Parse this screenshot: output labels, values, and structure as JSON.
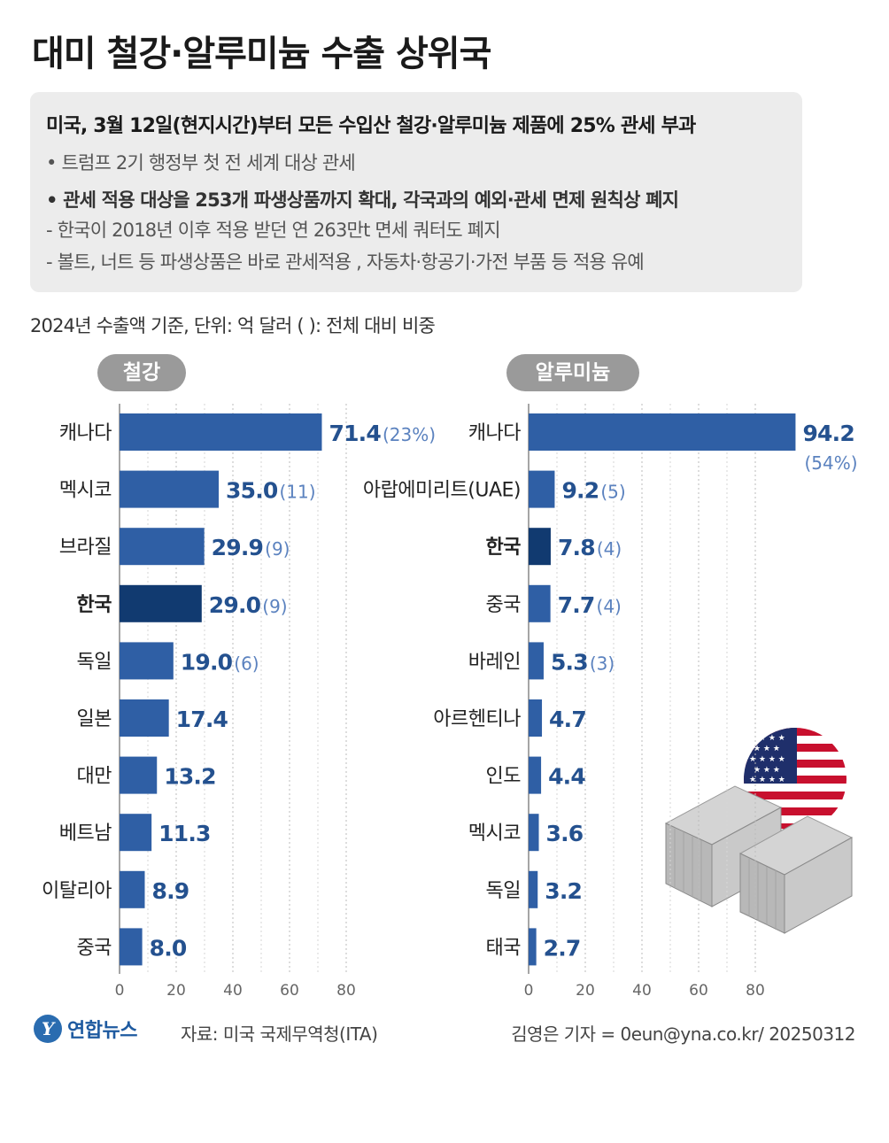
{
  "title": "대미 철강·알루미늄 수출 상위국",
  "summary": {
    "headline": "미국, 3월 12일(현지시간)부터 모든 수입산 철강·알루미늄 제품에 25% 관세 부과",
    "line1": "• 트럼프 2기 행정부 첫 전 세계 대상 관세",
    "line2": "• 관세 적용 대상을 253개 파생상품까지 확대, 각국과의 예외·관세 면제 원칙상 폐지",
    "line3": "- 한국이 2018년 이후 적용 받던 연 263만t 면세 쿼터도 폐지",
    "line4": "- 볼트, 너트 등 파생상품은 바로 관세적용 , 자동차·항공기·가전 부품 등 적용 유예"
  },
  "basis": "2024년 수출액 기준, 단위: 억 달러   (  ): 전체 대비 비중",
  "colors": {
    "bar": "#2f5fa5",
    "highlight": "#113a70",
    "value": "#24518f",
    "share": "#5b82bf",
    "grid": "#bbbbbb"
  },
  "chart_data": [
    {
      "type": "bar",
      "orientation": "horizontal",
      "title": "철강",
      "categories": [
        "캐나다",
        "멕시코",
        "브라질",
        "한국",
        "독일",
        "일본",
        "대만",
        "베트남",
        "이탈리아",
        "중국"
      ],
      "values": [
        71.4,
        35.0,
        29.9,
        29.0,
        19.0,
        17.4,
        13.2,
        11.3,
        8.9,
        8.0
      ],
      "value_labels": [
        "71.4",
        "35.0",
        "29.9",
        "29.0",
        "19.0",
        "17.4",
        "13.2",
        "11.3",
        "8.9",
        "8.0"
      ],
      "shares": [
        "(23%)",
        "(11)",
        "(9)",
        "(9)",
        "(6)",
        "",
        "",
        "",
        "",
        ""
      ],
      "highlight": "한국",
      "xlim": [
        0,
        90
      ],
      "xticks": [
        0,
        20,
        40,
        60,
        80
      ],
      "unit": "억 달러"
    },
    {
      "type": "bar",
      "orientation": "horizontal",
      "title": "알루미늄",
      "categories": [
        "캐나다",
        "아랍에미리트(UAE)",
        "한국",
        "중국",
        "바레인",
        "아르헨티나",
        "인도",
        "멕시코",
        "독일",
        "태국"
      ],
      "values": [
        94.2,
        9.2,
        7.8,
        7.7,
        5.3,
        4.7,
        4.4,
        3.6,
        3.2,
        2.7
      ],
      "value_labels": [
        "94.2",
        "9.2",
        "7.8",
        "7.7",
        "5.3",
        "4.7",
        "4.4",
        "3.6",
        "3.2",
        "2.7"
      ],
      "shares": [
        "(54%)",
        "(5)",
        "(4)",
        "(4)",
        "(3)",
        "",
        "",
        "",
        "",
        ""
      ],
      "highlight": "한국",
      "xlim": [
        0,
        90
      ],
      "xticks": [
        0,
        20,
        40,
        60,
        80
      ],
      "unit": "억 달러"
    }
  ],
  "footer": {
    "logo_mark": "Y",
    "logo_name": "연합뉴스",
    "source": "자료: 미국 국제무역청(ITA)",
    "credit": "김영은 기자 = 0eun@yna.co.kr/ 20250312"
  }
}
